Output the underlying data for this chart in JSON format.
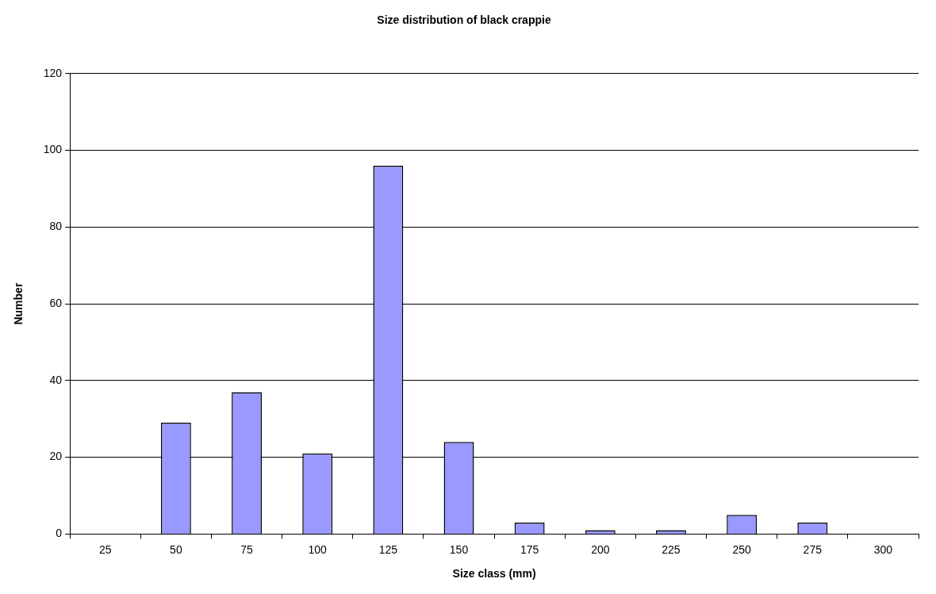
{
  "chart_data": {
    "type": "bar",
    "title": "Size distribution of black crappie",
    "xlabel": "Size class (mm)",
    "ylabel": "Number",
    "categories": [
      "25",
      "50",
      "75",
      "100",
      "125",
      "150",
      "175",
      "200",
      "225",
      "250",
      "275",
      "300"
    ],
    "values": [
      0,
      29,
      37,
      21,
      96,
      24,
      3,
      1,
      1,
      5,
      3,
      0
    ],
    "color": "#9999ff",
    "ylim": [
      0,
      120
    ],
    "yticks": [
      0,
      20,
      40,
      60,
      80,
      100,
      120
    ],
    "grid": "y"
  }
}
